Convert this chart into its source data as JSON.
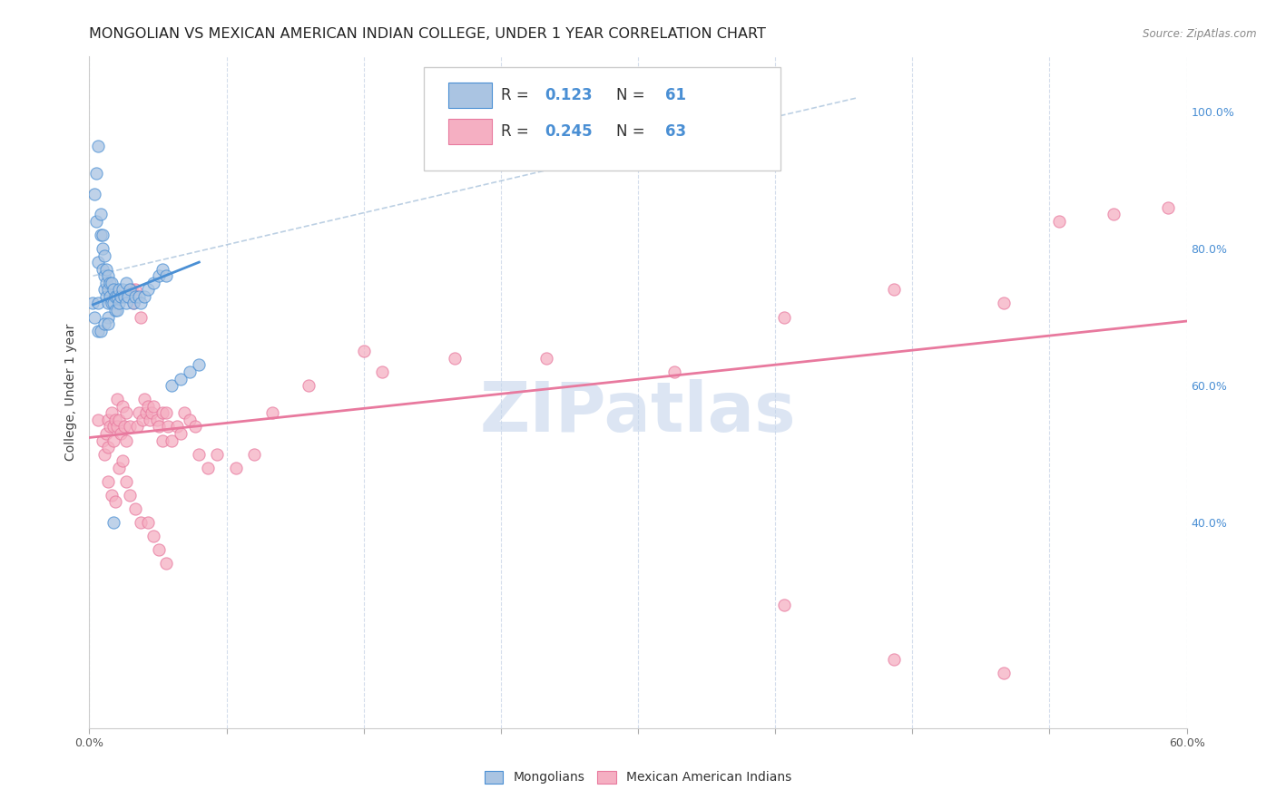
{
  "title": "MONGOLIAN VS MEXICAN AMERICAN INDIAN COLLEGE, UNDER 1 YEAR CORRELATION CHART",
  "source": "Source: ZipAtlas.com",
  "ylabel": "College, Under 1 year",
  "xlim": [
    0.0,
    0.6
  ],
  "ylim": [
    0.1,
    1.08
  ],
  "x_ticks": [
    0.0,
    0.075,
    0.15,
    0.225,
    0.3,
    0.375,
    0.45,
    0.525,
    0.6
  ],
  "x_tick_labels_show": {
    "0.0": "0.0%",
    "0.60": "60.0%"
  },
  "y_ticks_right": [
    0.4,
    0.6,
    0.8,
    1.0
  ],
  "y_tick_labels_right": [
    "40.0%",
    "60.0%",
    "80.0%",
    "100.0%"
  ],
  "color_blue": "#aac4e2",
  "color_pink": "#f5afc2",
  "line_blue": "#4a8fd4",
  "line_pink": "#e8799e",
  "dashed_line_color": "#a0bcd8",
  "watermark": "ZIPatlas",
  "mongolian_x": [
    0.002,
    0.003,
    0.004,
    0.004,
    0.005,
    0.005,
    0.005,
    0.006,
    0.006,
    0.007,
    0.007,
    0.007,
    0.008,
    0.008,
    0.008,
    0.009,
    0.009,
    0.009,
    0.01,
    0.01,
    0.01,
    0.01,
    0.011,
    0.011,
    0.012,
    0.012,
    0.013,
    0.013,
    0.014,
    0.014,
    0.015,
    0.015,
    0.016,
    0.016,
    0.017,
    0.018,
    0.019,
    0.02,
    0.02,
    0.021,
    0.022,
    0.024,
    0.025,
    0.027,
    0.028,
    0.03,
    0.032,
    0.035,
    0.038,
    0.04,
    0.042,
    0.045,
    0.05,
    0.055,
    0.06,
    0.003,
    0.005,
    0.006,
    0.008,
    0.01,
    0.013
  ],
  "mongolian_y": [
    0.72,
    0.88,
    0.84,
    0.91,
    0.78,
    0.95,
    0.72,
    0.85,
    0.82,
    0.82,
    0.8,
    0.77,
    0.79,
    0.76,
    0.74,
    0.77,
    0.75,
    0.73,
    0.76,
    0.74,
    0.72,
    0.7,
    0.75,
    0.73,
    0.75,
    0.72,
    0.74,
    0.72,
    0.73,
    0.71,
    0.73,
    0.71,
    0.74,
    0.72,
    0.73,
    0.74,
    0.73,
    0.75,
    0.72,
    0.73,
    0.74,
    0.72,
    0.73,
    0.73,
    0.72,
    0.73,
    0.74,
    0.75,
    0.76,
    0.77,
    0.76,
    0.6,
    0.61,
    0.62,
    0.63,
    0.7,
    0.68,
    0.68,
    0.69,
    0.69,
    0.4
  ],
  "mexican_x": [
    0.005,
    0.007,
    0.008,
    0.009,
    0.01,
    0.01,
    0.011,
    0.012,
    0.013,
    0.013,
    0.014,
    0.015,
    0.015,
    0.016,
    0.017,
    0.018,
    0.019,
    0.02,
    0.02,
    0.022,
    0.023,
    0.024,
    0.025,
    0.026,
    0.027,
    0.028,
    0.029,
    0.03,
    0.031,
    0.032,
    0.033,
    0.034,
    0.035,
    0.037,
    0.038,
    0.04,
    0.04,
    0.042,
    0.043,
    0.045,
    0.048,
    0.05,
    0.052,
    0.055,
    0.058,
    0.06,
    0.065,
    0.07,
    0.08,
    0.09,
    0.1,
    0.12,
    0.15,
    0.16,
    0.2,
    0.25,
    0.32,
    0.38,
    0.44,
    0.5,
    0.53,
    0.56,
    0.59
  ],
  "mexican_y": [
    0.55,
    0.52,
    0.5,
    0.53,
    0.55,
    0.51,
    0.54,
    0.56,
    0.54,
    0.52,
    0.55,
    0.54,
    0.58,
    0.55,
    0.53,
    0.57,
    0.54,
    0.56,
    0.52,
    0.54,
    0.74,
    0.72,
    0.74,
    0.54,
    0.56,
    0.7,
    0.55,
    0.58,
    0.56,
    0.57,
    0.55,
    0.56,
    0.57,
    0.55,
    0.54,
    0.56,
    0.52,
    0.56,
    0.54,
    0.52,
    0.54,
    0.53,
    0.56,
    0.55,
    0.54,
    0.5,
    0.48,
    0.5,
    0.48,
    0.5,
    0.56,
    0.6,
    0.65,
    0.62,
    0.64,
    0.64,
    0.62,
    0.7,
    0.74,
    0.72,
    0.84,
    0.85,
    0.86,
    0.46,
    0.44,
    0.43,
    0.48,
    0.49,
    0.46,
    0.44,
    0.42,
    0.4,
    0.4,
    0.38,
    0.36,
    0.34,
    0.28,
    0.2,
    0.18
  ],
  "mexican_x_extra": [
    0.01,
    0.012,
    0.014,
    0.016,
    0.018,
    0.02,
    0.022,
    0.025,
    0.028,
    0.032,
    0.035,
    0.038,
    0.042,
    0.38,
    0.44,
    0.5
  ],
  "blue_line_x": [
    0.002,
    0.06
  ],
  "blue_line_y": [
    0.718,
    0.78
  ],
  "pink_line_x": [
    0.0,
    0.6
  ],
  "pink_line_y": [
    0.524,
    0.694
  ],
  "dashed_line_x": [
    0.002,
    0.42
  ],
  "dashed_line_y": [
    0.76,
    1.02
  ],
  "background_color": "#ffffff",
  "grid_color": "#d0daea",
  "title_fontsize": 11.5,
  "axis_label_fontsize": 10,
  "tick_fontsize": 9,
  "watermark_color": "#c5d5ec",
  "watermark_fontsize": 55
}
